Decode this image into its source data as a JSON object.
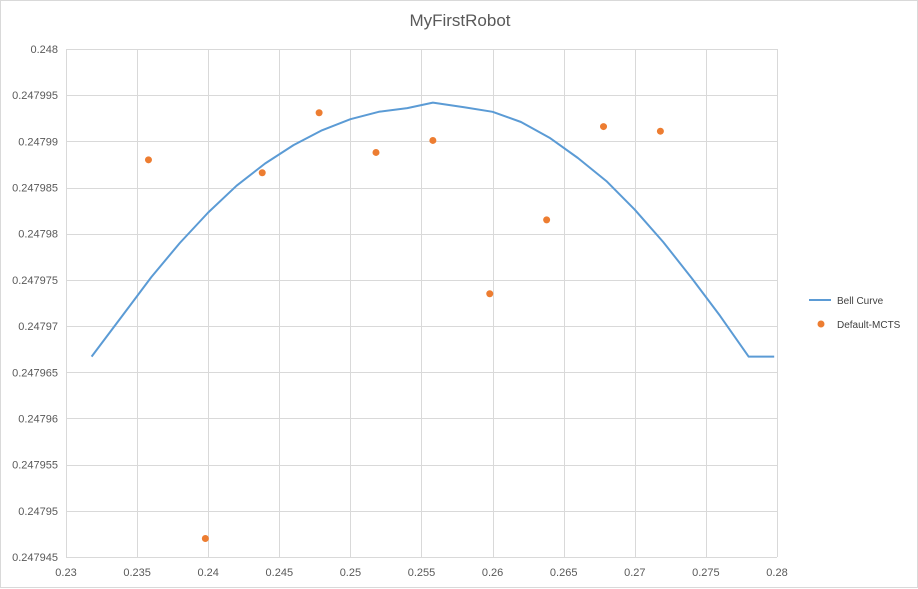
{
  "chart_data": {
    "type": "scatter",
    "title": "MyFirstRobot",
    "xlabel": "",
    "ylabel": "",
    "xlim": [
      0.23,
      0.28
    ],
    "ylim": [
      0.247945,
      0.248
    ],
    "xticks": [
      0.23,
      0.235,
      0.24,
      0.245,
      0.25,
      0.255,
      0.26,
      0.265,
      0.27,
      0.275,
      0.28
    ],
    "xtick_labels": [
      "0.23",
      "0.235",
      "0.24",
      "0.245",
      "0.25",
      "0.255",
      "0.26",
      "0.265",
      "0.27",
      "0.275",
      "0.28"
    ],
    "yticks": [
      0.247945,
      0.24795,
      0.247955,
      0.24796,
      0.247965,
      0.24797,
      0.247975,
      0.24798,
      0.247985,
      0.24799,
      0.247995,
      0.248
    ],
    "ytick_labels": [
      "0.247945",
      "0.24795",
      "0.247955",
      "0.24796",
      "0.247965",
      "0.24797",
      "0.247975",
      "0.24798",
      "0.247985",
      "0.24799",
      "0.247995",
      "0.248"
    ],
    "grid": true,
    "legend_position": "right",
    "series": [
      {
        "name": "Bell Curve",
        "kind": "line",
        "color": "#5b9bd5",
        "x": [
          0.2318,
          0.234,
          0.236,
          0.238,
          0.24,
          0.242,
          0.244,
          0.246,
          0.248,
          0.25,
          0.252,
          0.254,
          0.2558,
          0.258,
          0.26,
          0.262,
          0.264,
          0.266,
          0.268,
          0.27,
          0.272,
          0.274,
          0.276,
          0.278,
          0.2798
        ],
        "y": [
          0.2479667,
          0.2479712,
          0.2479753,
          0.247979,
          0.2479823,
          0.2479852,
          0.2479876,
          0.2479896,
          0.2479912,
          0.2479924,
          0.2479932,
          0.2479936,
          0.2479942,
          0.2479937,
          0.2479932,
          0.2479921,
          0.2479904,
          0.2479882,
          0.2479857,
          0.2479826,
          0.2479791,
          0.2479752,
          0.2479711,
          0.2479667,
          0.2479667
        ]
      },
      {
        "name": "Default-MCTS",
        "kind": "scatter",
        "color": "#ed7d31",
        "x": [
          0.2358,
          0.2398,
          0.2438,
          0.2478,
          0.2518,
          0.2558,
          0.2598,
          0.2638,
          0.2678,
          0.2718
        ],
        "y": [
          0.247988,
          0.247947,
          0.2479866,
          0.2479931,
          0.2479888,
          0.2479901,
          0.2479735,
          0.2479815,
          0.2479916,
          0.2479911
        ]
      }
    ]
  }
}
